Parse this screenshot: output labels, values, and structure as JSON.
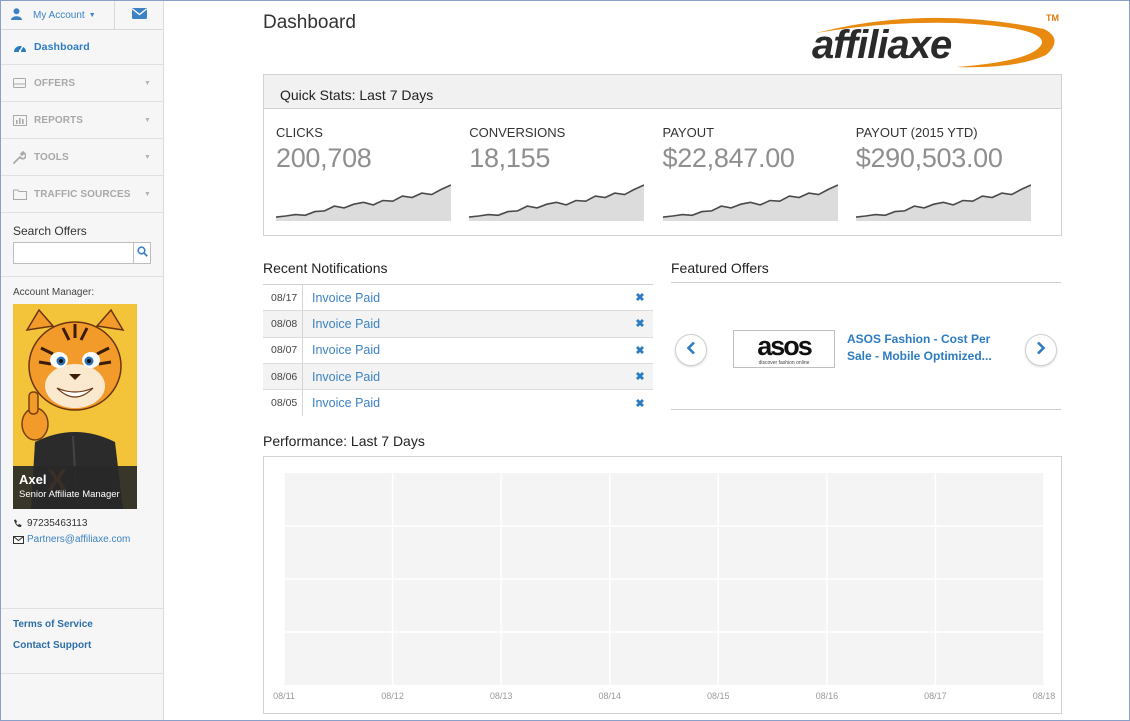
{
  "sidebar": {
    "account_label": "My Account",
    "nav": [
      {
        "label": "Dashboard",
        "icon": "dashboard-icon",
        "active": true
      },
      {
        "label": "OFFERS",
        "icon": "offers-icon"
      },
      {
        "label": "REPORTS",
        "icon": "reports-icon"
      },
      {
        "label": "TOOLS",
        "icon": "tools-icon"
      },
      {
        "label": "TRAFFIC SOURCES",
        "icon": "folder-icon"
      }
    ],
    "search_label": "Search Offers",
    "search_value": "",
    "manager_label": "Account Manager:",
    "manager_name": "Axel",
    "manager_title": "Senior Affiliate Manager",
    "phone": "97235463113",
    "email": "Partners@affiliaxe.com",
    "links": [
      "Terms of Service",
      "Contact Support"
    ]
  },
  "header": {
    "title": "Dashboard",
    "logo_text": "affiliaxe",
    "logo_tm": "TM"
  },
  "stats": {
    "title": "Quick Stats: Last 7 Days",
    "items": [
      {
        "label": "CLICKS",
        "value": "200,708"
      },
      {
        "label": "CONVERSIONS",
        "value": "18,155"
      },
      {
        "label": "PAYOUT",
        "value": "$22,847.00"
      },
      {
        "label": "PAYOUT (2015 YTD)",
        "value": "$290,503.00"
      }
    ]
  },
  "notifications": {
    "title": "Recent Notifications",
    "rows": [
      {
        "date": "08/17",
        "text": "Invoice Paid"
      },
      {
        "date": "08/08",
        "text": "Invoice Paid"
      },
      {
        "date": "08/07",
        "text": "Invoice Paid"
      },
      {
        "date": "08/06",
        "text": "Invoice Paid"
      },
      {
        "date": "08/05",
        "text": "Invoice Paid"
      }
    ]
  },
  "featured": {
    "title": "Featured Offers",
    "brand_word": "asos",
    "brand_tagline": "discover fashion online",
    "offer_title": "ASOS Fashion - Cost Per Sale - Mobile Optimized..."
  },
  "performance": {
    "title": "Performance: Last 7 Days"
  },
  "chart_data": {
    "type": "line",
    "title": "",
    "x": [
      "08/11",
      "08/12",
      "08/13",
      "08/14",
      "08/15",
      "08/16",
      "08/17",
      "08/18"
    ],
    "series": [],
    "grid": true
  },
  "colors": {
    "accent": "#3d82c4",
    "logo_orange": "#e88a10",
    "sidebar_bg": "#f6f6f6"
  }
}
